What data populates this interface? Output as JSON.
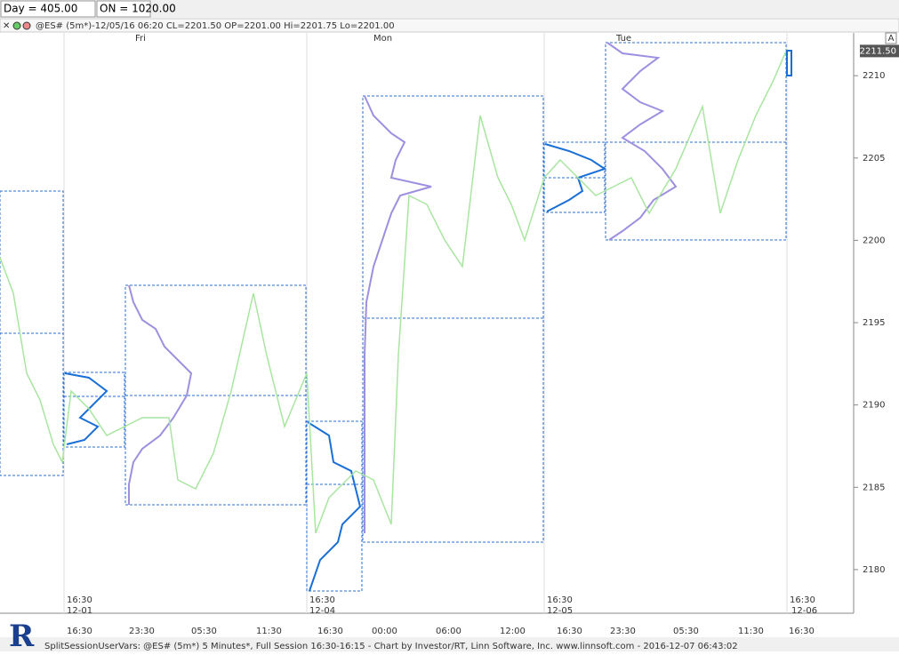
{
  "toolbar": {
    "day": "Day = 405.00",
    "on": "ON = 1020.00"
  },
  "header": {
    "text": "@ES# (5m*)-12/05/16 06:20 CL=2201.50 OP=2201.00 Hi=2201.75 Lo=2201.00",
    "corner": "A"
  },
  "day_labels": [
    "Fri",
    "Mon",
    "Tue"
  ],
  "price_axis": {
    "ylim": [
      2177.35,
      2212.6
    ],
    "ticks": [
      2180,
      2185,
      2190,
      2195,
      2200,
      2205,
      2210
    ],
    "last": {
      "value": 2211.5,
      "label": "2211.50"
    }
  },
  "session_marks": [
    {
      "time": "16:30",
      "date": "12-01"
    },
    {
      "time": "16:30",
      "date": "12-04"
    },
    {
      "time": "16:30",
      "date": "12-05"
    },
    {
      "time": "16:30",
      "date": "12-06"
    }
  ],
  "time_labels": [
    "16:30",
    "23:30",
    "05:30",
    "11:30",
    "16:30",
    "00:00",
    "06:00",
    "12:00",
    "16:30",
    "23:30",
    "05:30",
    "11:30",
    "16:30"
  ],
  "footer": "SplitSessionUserVars: @ES# (5m*) 5 Minutes*, Full Session 16:30-16:15 - Chart by Investor/RT, Linn Software, Inc. www.linnsoft.com - 2016-12-07 06:43:02"
}
